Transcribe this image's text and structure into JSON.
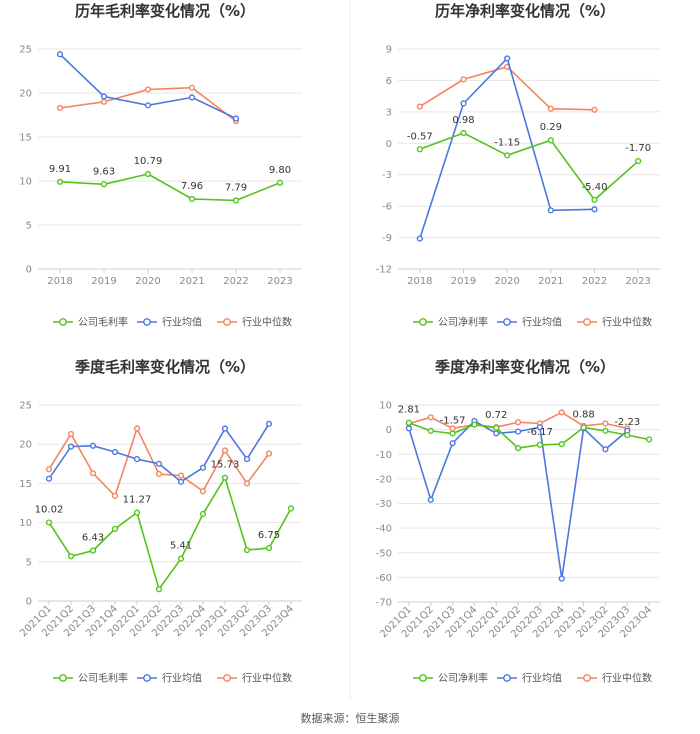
{
  "source": "数据来源：恒生聚源",
  "colors": {
    "company": "#52c41a",
    "avg": "#4a78e0",
    "median": "#f4845f"
  },
  "chart_data": [
    {
      "type": "line",
      "title": "历年毛利率变化情况（%）",
      "categories": [
        "2018",
        "2019",
        "2020",
        "2021",
        "2022",
        "2023"
      ],
      "ylim": [
        0,
        25
      ],
      "yticks": [
        0,
        5,
        10,
        15,
        20,
        25
      ],
      "series": [
        {
          "name": "公司毛利率",
          "key": "company",
          "values": [
            9.91,
            9.63,
            10.79,
            7.96,
            7.79,
            9.8
          ],
          "labels": [
            "9.91",
            "9.63",
            "10.79",
            "7.96",
            "7.79",
            "9.80"
          ]
        },
        {
          "name": "行业均值",
          "key": "avg",
          "values": [
            24.4,
            19.6,
            18.6,
            19.5,
            17.1,
            null
          ]
        },
        {
          "name": "行业中位数",
          "key": "median",
          "values": [
            18.3,
            19.0,
            20.4,
            20.6,
            16.8,
            null
          ]
        }
      ],
      "legend": "bottom",
      "grid": true
    },
    {
      "type": "line",
      "title": "历年净利率变化情况（%）",
      "categories": [
        "2018",
        "2019",
        "2020",
        "2021",
        "2022",
        "2023"
      ],
      "ylim": [
        -12,
        9
      ],
      "yticks": [
        -12,
        -9,
        -6,
        -3,
        0,
        3,
        6,
        9
      ],
      "series": [
        {
          "name": "公司净利率",
          "key": "company",
          "values": [
            -0.57,
            0.98,
            -1.15,
            0.29,
            -5.4,
            -1.7
          ],
          "labels": [
            "-0.57",
            "0.98",
            "-1.15",
            "0.29",
            "-5.40",
            "-1.70"
          ]
        },
        {
          "name": "行业均值",
          "key": "avg",
          "values": [
            -9.1,
            3.8,
            8.1,
            -6.4,
            -6.3,
            null
          ]
        },
        {
          "name": "行业中位数",
          "key": "median",
          "values": [
            3.5,
            6.1,
            7.3,
            3.3,
            3.2,
            null
          ]
        }
      ],
      "legend": "bottom",
      "grid": true
    },
    {
      "type": "line",
      "title": "季度毛利率变化情况（%）",
      "categories": [
        "2021Q1",
        "2021Q2",
        "2021Q3",
        "2021Q4",
        "2022Q1",
        "2022Q2",
        "2022Q3",
        "2022Q4",
        "2023Q1",
        "2023Q2",
        "2023Q3",
        "2023Q4"
      ],
      "ylim": [
        0,
        25
      ],
      "yticks": [
        0,
        5,
        10,
        15,
        20,
        25
      ],
      "series": [
        {
          "name": "公司毛利率",
          "key": "company",
          "values": [
            10.02,
            5.7,
            6.43,
            9.2,
            11.27,
            1.5,
            5.41,
            11.1,
            15.73,
            6.5,
            6.75,
            11.8
          ],
          "labels": [
            "10.02",
            null,
            "6.43",
            null,
            "11.27",
            null,
            "5.41",
            null,
            "15.73",
            null,
            "6.75",
            null
          ]
        },
        {
          "name": "行业均值",
          "key": "avg",
          "values": [
            15.6,
            19.7,
            19.8,
            19.0,
            18.1,
            17.5,
            15.2,
            17.0,
            22.0,
            18.1,
            22.6,
            null
          ]
        },
        {
          "name": "行业中位数",
          "key": "median",
          "values": [
            16.8,
            21.3,
            16.3,
            13.4,
            22.0,
            16.2,
            16.0,
            14.0,
            19.2,
            15.0,
            18.8,
            null
          ]
        }
      ],
      "legend": "bottom",
      "grid": true
    },
    {
      "type": "line",
      "title": "季度净利率变化情况（%）",
      "categories": [
        "2021Q1",
        "2021Q2",
        "2021Q3",
        "2021Q4",
        "2022Q1",
        "2022Q2",
        "2022Q3",
        "2022Q4",
        "2023Q1",
        "2023Q2",
        "2023Q3",
        "2023Q4"
      ],
      "ylim": [
        -70,
        10
      ],
      "yticks": [
        -70,
        -60,
        -50,
        -40,
        -30,
        -20,
        -10,
        0,
        10
      ],
      "series": [
        {
          "name": "公司净利率",
          "key": "company",
          "values": [
            2.81,
            -0.5,
            -1.57,
            2.0,
            0.72,
            -7.5,
            -6.17,
            -5.9,
            0.88,
            -0.5,
            -2.23,
            -4.0
          ],
          "labels": [
            "2.81",
            null,
            "-1.57",
            null,
            "0.72",
            null,
            "-6.17",
            null,
            "0.88",
            null,
            "-2.23",
            null
          ]
        },
        {
          "name": "行业均值",
          "key": "avg",
          "values": [
            0.5,
            -28.5,
            -5.5,
            3.5,
            -1.5,
            -0.8,
            1.0,
            -60.5,
            0.5,
            -8.0,
            -0.5,
            null
          ]
        },
        {
          "name": "行业中位数",
          "key": "median",
          "values": [
            2.5,
            5.0,
            0.5,
            2.0,
            1.0,
            3.0,
            2.5,
            7.0,
            1.5,
            2.5,
            0.5,
            null
          ]
        }
      ],
      "legend": "bottom",
      "grid": true
    }
  ]
}
